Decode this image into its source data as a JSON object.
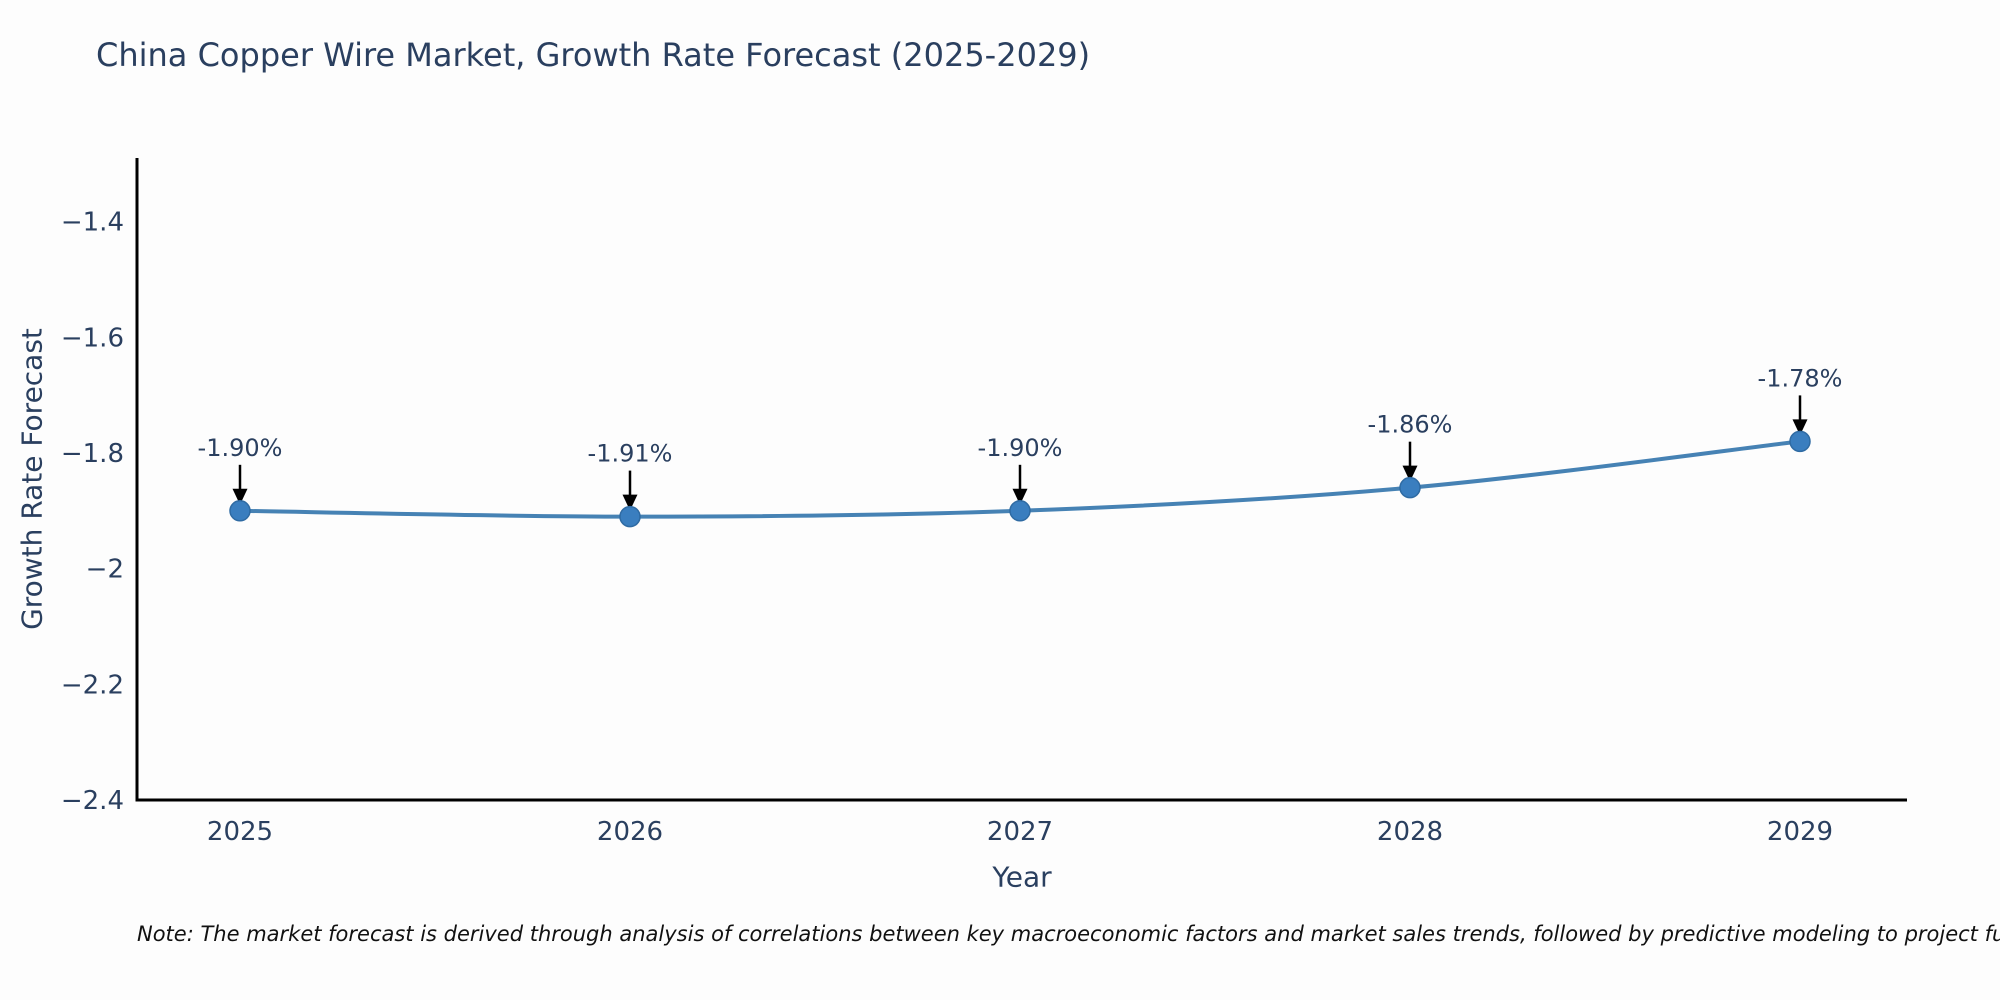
{
  "page": {
    "background": "#fdfdfd"
  },
  "chart_data": {
    "type": "line",
    "title": "China Copper Wire Market, Growth Rate Forecast (2025-2029)",
    "xlabel": "Year",
    "ylabel": "Growth Rate Forecast",
    "x": [
      2025,
      2026,
      2027,
      2028,
      2029
    ],
    "xtick_labels": [
      "2025",
      "2026",
      "2027",
      "2028",
      "2029"
    ],
    "series": [
      {
        "name": "Growth Rate Forecast",
        "values": [
          -1.9,
          -1.91,
          -1.9,
          -1.86,
          -1.78
        ]
      }
    ],
    "point_labels": [
      "-1.90%",
      "-1.91%",
      "-1.90%",
      "-1.86%",
      "-1.78%"
    ],
    "ylim": [
      -2.4,
      -1.29
    ],
    "yticks": [
      -1.4,
      -1.6,
      -1.8,
      -2.0,
      -2.2,
      -2.4
    ],
    "ytick_labels": [
      "−1.4",
      "−1.6",
      "−1.8",
      "−2",
      "−2.2",
      "−2.4"
    ],
    "grid": false,
    "legend": "none",
    "colors": {
      "line": "#4682b4",
      "marker_fill": "#3a7ebf",
      "marker_edge": "#2f6ba3",
      "axis_line": "#000000",
      "tick_text": "#2a3f5f",
      "annotation_text": "#2a3f5f",
      "annotation_arrow": "#000000"
    }
  },
  "note": {
    "text": "Note: The market forecast is derived through analysis of correlations between key macroeconomic factors and market sales trends, followed by predictive modeling to project future sales"
  }
}
